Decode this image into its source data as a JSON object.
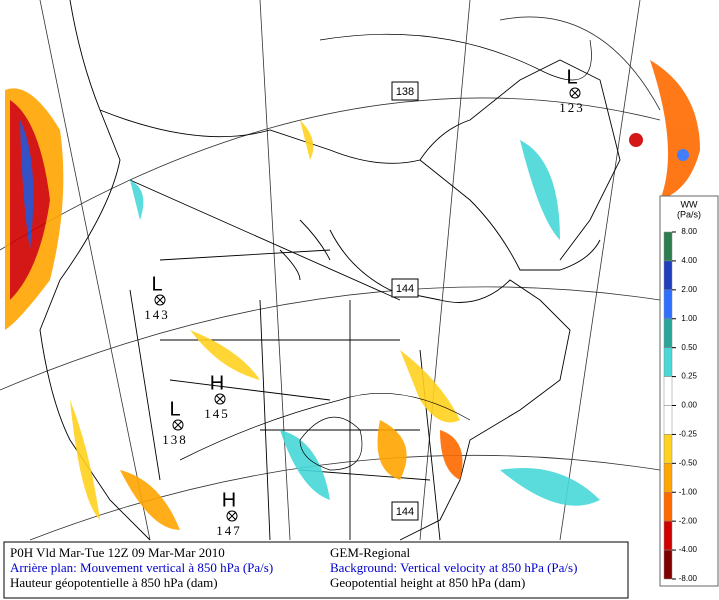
{
  "map": {
    "centers": [
      {
        "symbol": "L",
        "value": "123"
      },
      {
        "symbol": "L",
        "value": "143"
      },
      {
        "symbol": "H",
        "value": "145"
      },
      {
        "symbol": "L",
        "value": "138"
      },
      {
        "symbol": "H",
        "value": "147"
      }
    ],
    "contour_labels": [
      "138",
      "144",
      "144"
    ]
  },
  "legend": {
    "title": "WW",
    "unit": "(Pa/s)",
    "levels": [
      {
        "value": 8,
        "label": "8.00"
      },
      {
        "value": 4,
        "label": "4.00"
      },
      {
        "value": 2,
        "label": "2.00"
      },
      {
        "value": 1,
        "label": "1.00"
      },
      {
        "value": 0.5,
        "label": "0.50"
      },
      {
        "value": 0.25,
        "label": "0.25"
      },
      {
        "value": 0,
        "label": "0.00"
      },
      {
        "value": -0.25,
        "label": "-0.25"
      },
      {
        "value": -0.5,
        "label": "-0.50"
      },
      {
        "value": -1,
        "label": "-1.00"
      },
      {
        "value": -2,
        "label": "-2.00"
      },
      {
        "value": -4,
        "label": "-4.00"
      },
      {
        "value": -8,
        "label": "-8.00"
      }
    ],
    "colors": [
      "#2e7d4f",
      "#1f3fbf",
      "#2f6fff",
      "#2aa59a",
      "#48d8d8",
      "#ffffff",
      "#ffffff",
      "#ffd21f",
      "#ffa500",
      "#ff6a00",
      "#d00000",
      "#800000"
    ]
  },
  "caption": {
    "left": [
      "P0H Vld Mar-Tue 12Z 09 Mar-Mar 2010",
      "Arrière plan: Mouvement vertical à 850 hPa (Pa/s)",
      "Hauteur géopotentielle à 850 hPa (dam)"
    ],
    "right": [
      "GEM-Regional",
      "Background: Vertical velocity at 850 hPa (Pa/s)",
      "Geopotential height at 850 hPa (dam)"
    ]
  }
}
